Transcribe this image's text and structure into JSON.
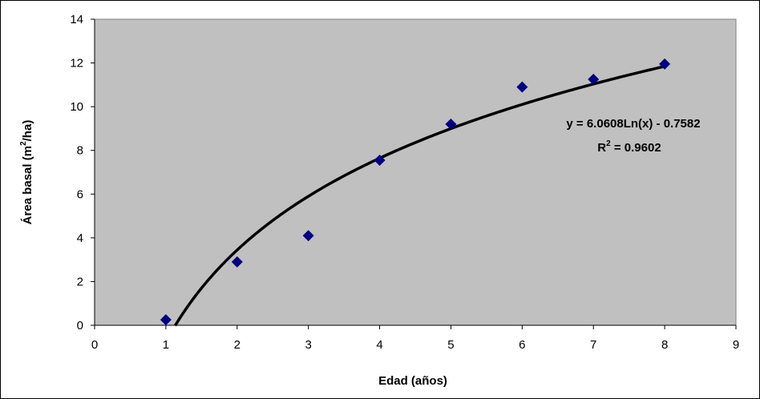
{
  "chart_data": {
    "type": "scatter",
    "xlabel": "Edad (años)",
    "ylabel": {
      "main": "Área basal (m",
      "sup": "2",
      "tail": "/ha)"
    },
    "xlim": [
      0,
      9
    ],
    "ylim": [
      0,
      14
    ],
    "x_ticks": [
      "0",
      "1",
      "2",
      "3",
      "4",
      "5",
      "6",
      "7",
      "8",
      "9"
    ],
    "y_ticks": [
      "0",
      "2",
      "4",
      "6",
      "8",
      "10",
      "12",
      "14"
    ],
    "grid": false,
    "legend": "none",
    "series": [
      {
        "x": [
          1,
          2,
          3,
          4,
          5,
          6,
          7,
          8
        ],
        "y": [
          0.25,
          2.9,
          4.1,
          7.55,
          9.2,
          10.9,
          11.25,
          11.95
        ]
      }
    ],
    "trendline": {
      "type": "logarithmic",
      "a": 6.0608,
      "b": -0.7582,
      "x_range": [
        1.13,
        8
      ],
      "equation_text": "y = 6.0608Ln(x) - 0.7582",
      "r2_prefix": "R",
      "r2_sup": "2",
      "r2_value": " = 0.9602"
    },
    "colors": {
      "plot_background": "#c0c0c0",
      "marker": "#000080",
      "trendline": "#000000"
    }
  }
}
